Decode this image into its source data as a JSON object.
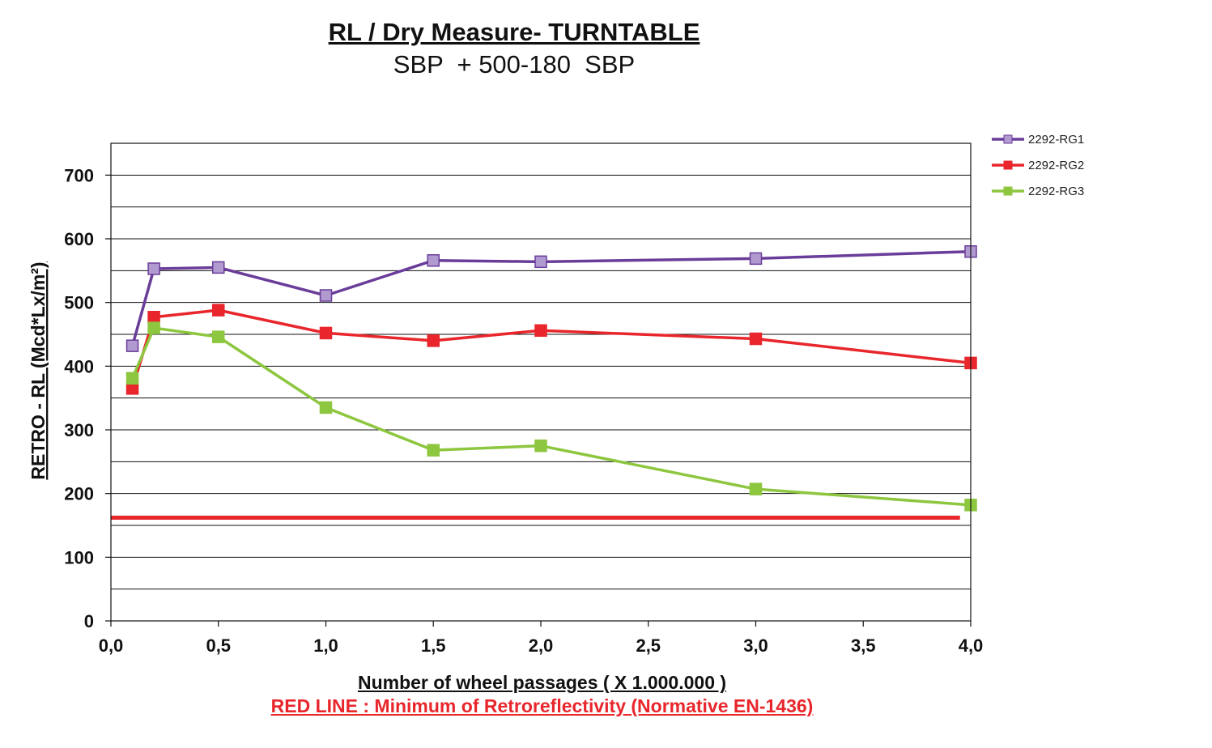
{
  "chart_data": {
    "type": "line",
    "title": "RL / Dry Measure- TURNTABLE",
    "subtitle": "SBP  + 500-180  SBP",
    "xlabel": "Number of wheel passages ( X 1.000.000 )",
    "ylabel": "RETRO - RL (Mcd*Lx/m²)",
    "note": "RED LINE : Minimum  of Retroreflectivity (Normative EN-1436)",
    "xlim": [
      0,
      4
    ],
    "ylim": [
      0,
      750
    ],
    "x_ticks": [
      {
        "v": 0,
        "label": "0,0"
      },
      {
        "v": 0.5,
        "label": "0,5"
      },
      {
        "v": 1,
        "label": "1,0"
      },
      {
        "v": 1.5,
        "label": "1,5"
      },
      {
        "v": 2,
        "label": "2,0"
      },
      {
        "v": 2.5,
        "label": "2,5"
      },
      {
        "v": 3,
        "label": "3,0"
      },
      {
        "v": 3.5,
        "label": "3,5"
      },
      {
        "v": 4,
        "label": "4,0"
      }
    ],
    "y_ticks": [
      {
        "v": 0,
        "label": "0"
      },
      {
        "v": 100,
        "label": "100"
      },
      {
        "v": 200,
        "label": "200"
      },
      {
        "v": 300,
        "label": "300"
      },
      {
        "v": 400,
        "label": "400"
      },
      {
        "v": 500,
        "label": "500"
      },
      {
        "v": 600,
        "label": "600"
      },
      {
        "v": 700,
        "label": "700"
      }
    ],
    "gridlines_y": [
      50,
      100,
      150,
      200,
      250,
      300,
      350,
      400,
      450,
      500,
      550,
      600,
      650,
      700
    ],
    "grid": true,
    "legend_position": "top-right",
    "series": [
      {
        "name": "2292-RG1",
        "color": "#6a3d9a",
        "marker_color": "#b09ad0",
        "x": [
          0.1,
          0.2,
          0.5,
          1.0,
          1.5,
          2.0,
          3.0,
          4.0
        ],
        "y": [
          432,
          553,
          555,
          511,
          566,
          564,
          569,
          580
        ]
      },
      {
        "name": "2292-RG2",
        "color": "#e8262c",
        "marker_color": "#e8262c",
        "x": [
          0.1,
          0.2,
          0.5,
          1.0,
          1.5,
          2.0,
          3.0,
          4.0
        ],
        "y": [
          365,
          477,
          488,
          452,
          440,
          456,
          443,
          405
        ]
      },
      {
        "name": "2292-RG3",
        "color": "#8dc63f",
        "marker_color": "#8dc63f",
        "x": [
          0.1,
          0.2,
          0.5,
          1.0,
          1.5,
          2.0,
          3.0,
          4.0
        ],
        "y": [
          381,
          460,
          446,
          335,
          268,
          275,
          207,
          182
        ]
      }
    ],
    "reference_line": {
      "y": 162,
      "x_start": 0,
      "x_end": 3.95,
      "color": "#e8262c"
    }
  }
}
